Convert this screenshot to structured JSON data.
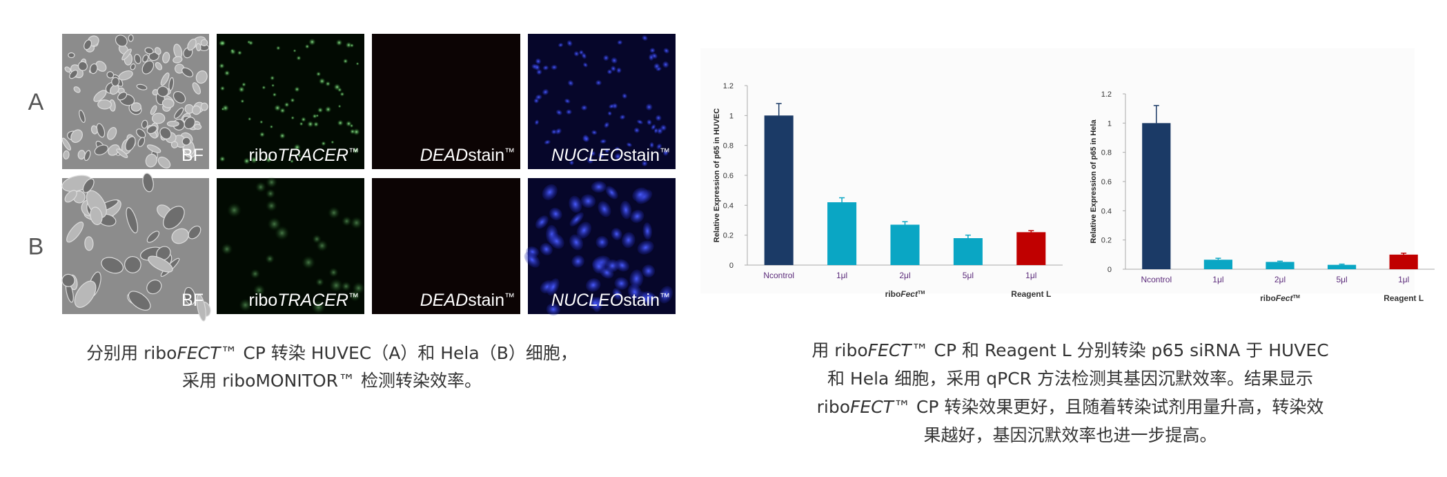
{
  "images": {
    "rows": [
      {
        "label": "A",
        "panels": [
          [
            {
              "text": "BF"
            }
          ],
          [
            {
              "text": "ribo"
            },
            {
              "text": "TRACER",
              "style": "italic"
            },
            {
              "text": "™",
              "style": "sup"
            }
          ],
          [
            {
              "text": "DEAD",
              "style": "italic"
            },
            {
              "text": "stain"
            },
            {
              "text": "™",
              "style": "sup"
            }
          ],
          [
            {
              "text": "NUCLEO",
              "style": "italic"
            },
            {
              "text": "stain"
            },
            {
              "text": "™",
              "style": "sup"
            }
          ]
        ]
      },
      {
        "label": "B",
        "panels": [
          [
            {
              "text": "BF"
            }
          ],
          [
            {
              "text": "ribo"
            },
            {
              "text": "TRACER",
              "style": "italic"
            },
            {
              "text": "™",
              "style": "sup"
            }
          ],
          [
            {
              "text": "DEAD",
              "style": "italic"
            },
            {
              "text": "stain"
            },
            {
              "text": "™",
              "style": "sup"
            }
          ],
          [
            {
              "text": "NUCLEO",
              "style": "italic"
            },
            {
              "text": "stain"
            },
            {
              "text": "™",
              "style": "sup"
            }
          ]
        ]
      }
    ],
    "caption": [
      [
        {
          "text": "分别用 ribo"
        },
        {
          "text": "FECT",
          "style": "italic"
        },
        {
          "text": "™ CP 转染 HUVEC（A）和 Hela（B）细胞，"
        }
      ],
      [
        {
          "text": "采用 riboMONITOR™ 检测转染效率。"
        }
      ]
    ]
  },
  "chart_data": [
    {
      "type": "bar",
      "y_label": "Relative Expression of p65 in HUVEC",
      "categories": [
        "Ncontrol",
        "1μl",
        "2μl",
        "5μl",
        "1μl"
      ],
      "values": [
        1.0,
        0.42,
        0.27,
        0.18,
        0.22
      ],
      "errors": [
        0.08,
        0.03,
        0.02,
        0.02,
        0.01
      ],
      "colors": [
        "#1b3a66",
        "#0aa6c4",
        "#0aa6c4",
        "#0aa6c4",
        "#c00000"
      ],
      "groups": [
        {
          "name": [
            {
              "text": "ribo"
            },
            {
              "text": "Fect",
              "style": "italic"
            },
            {
              "text": "TM",
              "style": "sup"
            }
          ],
          "first": 1,
          "last": 3
        },
        {
          "name": [
            {
              "text": "Reagent L"
            }
          ],
          "first": 4,
          "last": 4
        }
      ],
      "ylim": [
        0,
        1.2
      ],
      "yticks": [
        0,
        0.2,
        0.4,
        0.6,
        0.8,
        1,
        1.2
      ]
    },
    {
      "type": "bar",
      "y_label": "Relative Expression of p65 in Hela",
      "categories": [
        "Ncontrol",
        "1μl",
        "2μl",
        "5μl",
        "1μl"
      ],
      "values": [
        1.0,
        0.065,
        0.05,
        0.03,
        0.1
      ],
      "errors": [
        0.12,
        0.01,
        0.005,
        0.005,
        0.01
      ],
      "colors": [
        "#1b3a66",
        "#0aa6c4",
        "#0aa6c4",
        "#0aa6c4",
        "#c00000"
      ],
      "groups": [
        {
          "name": [
            {
              "text": "ribo"
            },
            {
              "text": "Fect",
              "style": "italic"
            },
            {
              "text": "TM",
              "style": "sup"
            }
          ],
          "first": 1,
          "last": 3
        },
        {
          "name": [
            {
              "text": "Reagent L"
            }
          ],
          "first": 4,
          "last": 4
        }
      ],
      "ylim": [
        0,
        1.2
      ],
      "yticks": [
        0,
        0.2,
        0.4,
        0.6,
        0.8,
        1,
        1.2
      ]
    }
  ],
  "caption_right": [
    [
      {
        "text": "用 ribo"
      },
      {
        "text": "FECT",
        "style": "italic"
      },
      {
        "text": "™ CP 和 Reagent L 分别转染 p65 siRNA 于 HUVEC"
      }
    ],
    [
      {
        "text": "和 Hela 细胞，采用 qPCR 方法检测其基因沉默效率。结果显示"
      }
    ],
    [
      {
        "text": "ribo"
      },
      {
        "text": "FECT",
        "style": "italic"
      },
      {
        "text": "™ CP 转染效果更好，且随着转染试剂用量升高，转染效"
      }
    ],
    [
      {
        "text": "果越好，基因沉默效率也进一步提高。"
      }
    ]
  ]
}
